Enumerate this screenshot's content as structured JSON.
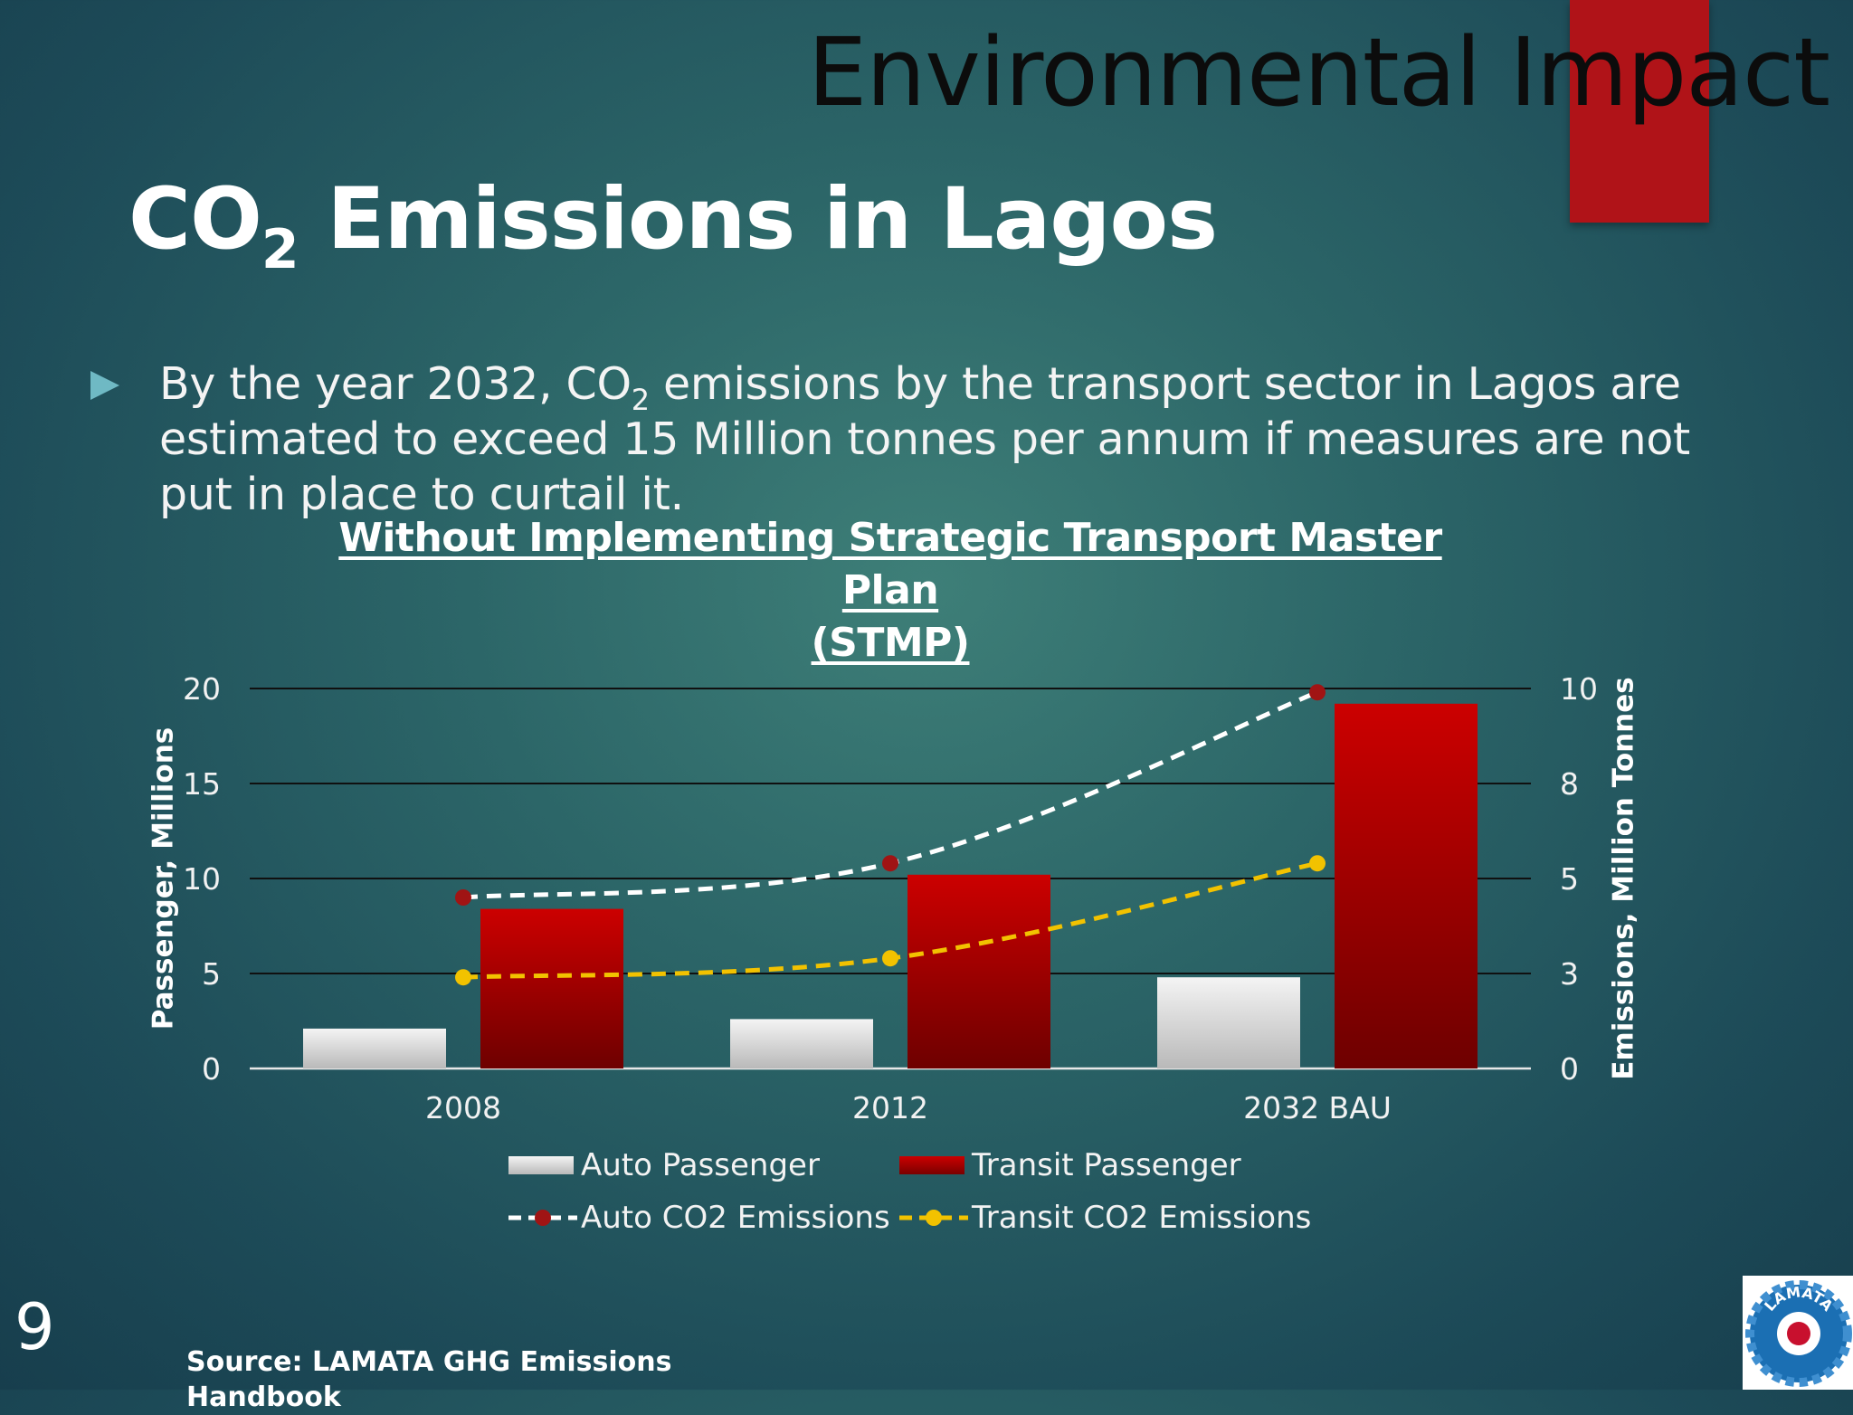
{
  "slide": {
    "section_title": "Environmental Impact",
    "title_prefix": "CO",
    "title_sub": "2",
    "title_suffix": " Emissions in Lagos",
    "bullet_prefix": "By the year 2032, CO",
    "bullet_sub": "2",
    "bullet_suffix": " emissions by the transport sector in Lagos are estimated to exceed 15 Million tonnes per annum if measures are not put in place to curtail it.",
    "chart_title_line1": "Without Implementing Strategic Transport Master Plan",
    "chart_title_line2": "(STMP)",
    "slide_number": "9",
    "source_line1": "Source: LAMATA GHG Emissions",
    "source_line2": "Handbook",
    "logo_text": "LAMATA",
    "colors": {
      "accent_red": "#b01318",
      "auto_bar": "#e6e6e6",
      "transit_bar": "#c00000",
      "auto_line": "#ffffff",
      "auto_marker": "#a01414",
      "transit_line": "#f2c200"
    }
  },
  "chart_data": {
    "type": "bar",
    "categories": [
      "2008",
      "2012",
      "2032 BAU"
    ],
    "ylabel": "Passenger, Millions",
    "y2label": "Emissions, Million Tonnes",
    "ylim": [
      0,
      20
    ],
    "y2lim": [
      0,
      10
    ],
    "yticks": [
      "0",
      "5",
      "10",
      "15",
      "20"
    ],
    "y2ticks": [
      "0",
      "3",
      "5",
      "8",
      "10"
    ],
    "grid": true,
    "legend_position": "bottom",
    "series": [
      {
        "name": "Auto Passenger",
        "type": "bar",
        "axis": "left",
        "values": [
          2.1,
          2.6,
          4.8
        ]
      },
      {
        "name": "Transit Passenger",
        "type": "bar",
        "axis": "left",
        "values": [
          8.4,
          10.2,
          19.2
        ]
      },
      {
        "name": "Auto CO2 Emissions",
        "type": "line",
        "axis": "right",
        "style": "dashed",
        "values": [
          4.5,
          5.4,
          9.9
        ]
      },
      {
        "name": "Transit CO2 Emissions",
        "type": "line",
        "axis": "right",
        "style": "dashed",
        "values": [
          2.4,
          2.9,
          5.4
        ]
      }
    ]
  }
}
